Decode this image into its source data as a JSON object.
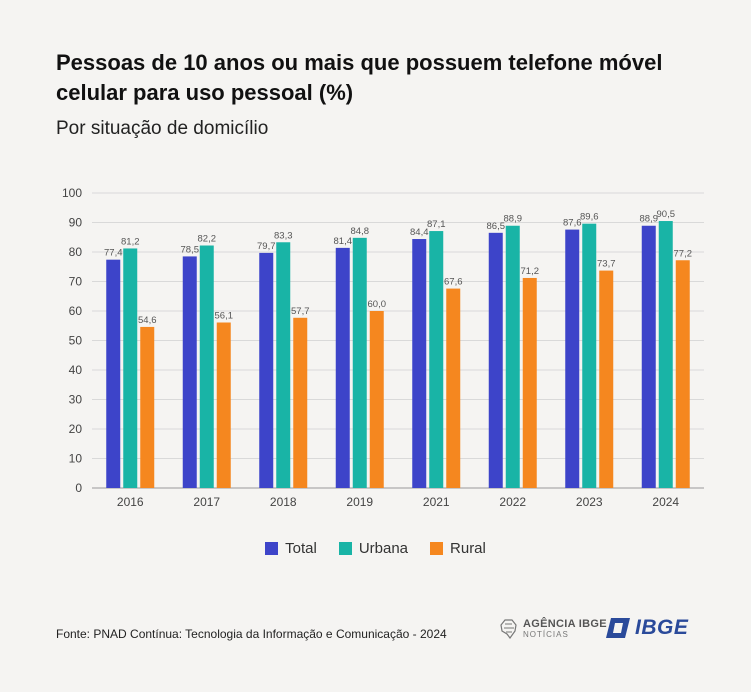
{
  "title": "Pessoas de 10 anos ou mais que possuem telefone móvel celular para uso pessoal (%)",
  "subtitle": "Por situação de domicílio",
  "source": "Fonte: PNAD Contínua: Tecnologia da Informação e Comunicação - 2024",
  "logos": {
    "agencia_main": "AGÊNCIA IBGE",
    "agencia_sub": "NOTÍCIAS",
    "ibge": "IBGE"
  },
  "colors": {
    "total": "#3d44c9",
    "urbana": "#19b4a6",
    "rural": "#f5871f",
    "grid": "#d9d9d9",
    "axis": "#999999"
  },
  "chart_data": {
    "type": "bar",
    "categories": [
      "2016",
      "2017",
      "2018",
      "2019",
      "2021",
      "2022",
      "2023",
      "2024"
    ],
    "series": [
      {
        "name": "Total",
        "values": [
          77.4,
          78.5,
          79.7,
          81.4,
          84.4,
          86.5,
          87.6,
          88.9
        ]
      },
      {
        "name": "Urbana",
        "values": [
          81.2,
          82.2,
          83.3,
          84.8,
          87.1,
          88.9,
          89.6,
          90.5
        ]
      },
      {
        "name": "Rural",
        "values": [
          54.6,
          56.1,
          57.7,
          60.0,
          67.6,
          71.2,
          73.7,
          77.2
        ]
      }
    ],
    "yticks": [
      0,
      10,
      20,
      30,
      40,
      50,
      60,
      70,
      80,
      90,
      100
    ],
    "ylim": [
      0,
      100
    ],
    "grid": true,
    "legend": "bottom-center",
    "decimal_separator": ","
  }
}
